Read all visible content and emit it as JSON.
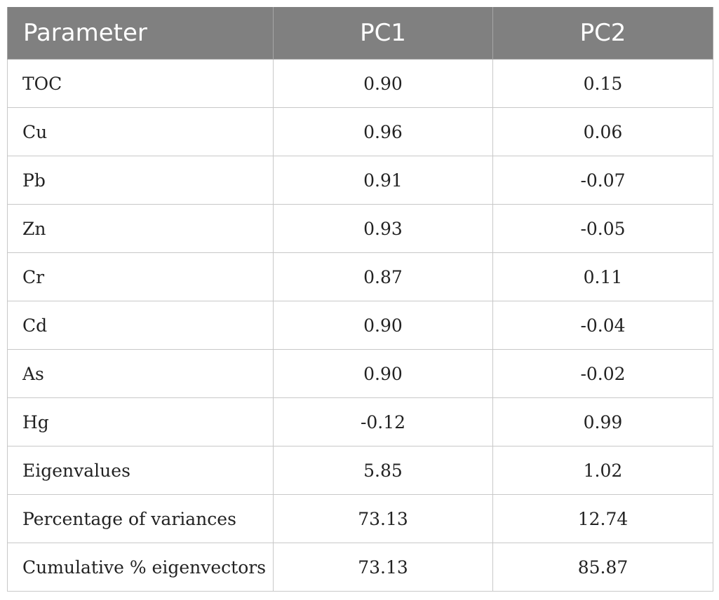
{
  "table": {
    "headers": [
      "Parameter",
      "PC1",
      "PC2"
    ],
    "rows": [
      [
        "TOC",
        "0.90",
        "0.15"
      ],
      [
        "Cu",
        "0.96",
        "0.06"
      ],
      [
        "Pb",
        "0.91",
        "-0.07"
      ],
      [
        "Zn",
        "0.93",
        "-0.05"
      ],
      [
        "Cr",
        "0.87",
        "0.11"
      ],
      [
        "Cd",
        "0.90",
        "-0.04"
      ],
      [
        "As",
        "0.90",
        "-0.02"
      ],
      [
        "Hg",
        "-0.12",
        "0.99"
      ],
      [
        "Eigenvalues",
        "5.85",
        "1.02"
      ],
      [
        "Percentage of variances",
        "73.13",
        "12.74"
      ],
      [
        "Cumulative % eigenvectors",
        "73.13",
        "85.87"
      ]
    ]
  },
  "colors": {
    "header_bg": "#808080",
    "header_text": "#ffffff",
    "border": "#c8c8c8"
  }
}
